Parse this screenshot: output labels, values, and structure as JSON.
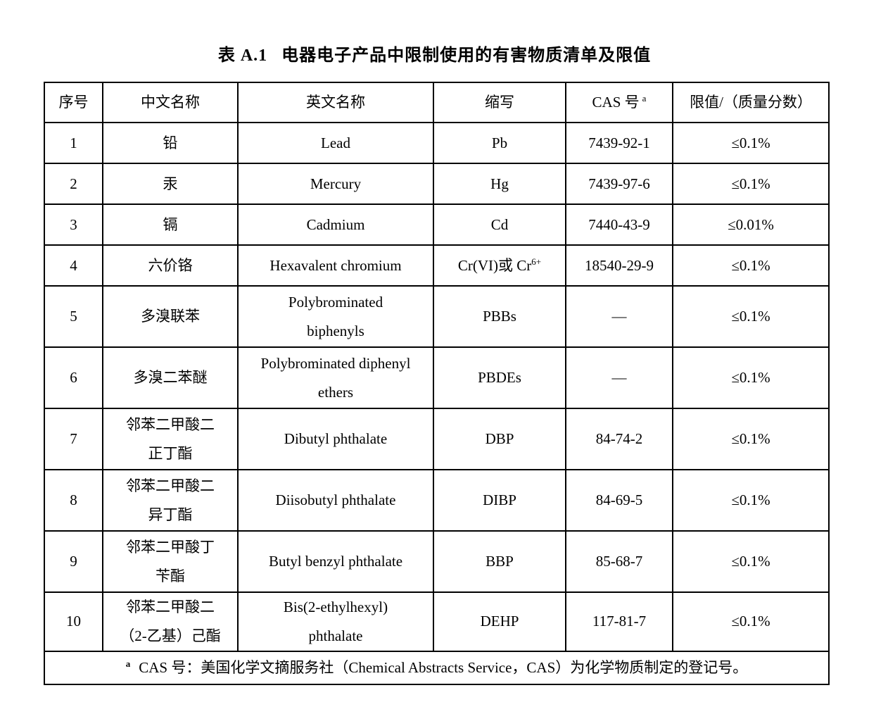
{
  "title": {
    "label": "表 A.1",
    "text": "电器电子产品中限制使用的有害物质清单及限值"
  },
  "table": {
    "header": {
      "no": "序号",
      "cn": "中文名称",
      "en": "英文名称",
      "abbr": "缩写",
      "cas": "CAS 号",
      "cas_sup": "a",
      "limit": "限值/（质量分数）"
    },
    "rows": [
      {
        "no": "1",
        "cn": "铅",
        "en": "Lead",
        "abbr": "Pb",
        "cas": "7439-92-1",
        "limit": "≤0.1%"
      },
      {
        "no": "2",
        "cn": "汞",
        "en": "Mercury",
        "abbr": "Hg",
        "cas": "7439-97-6",
        "limit": "≤0.1%"
      },
      {
        "no": "3",
        "cn": "镉",
        "en": "Cadmium",
        "abbr": "Cd",
        "cas": "7440-43-9",
        "limit": "≤0.01%"
      },
      {
        "no": "4",
        "cn": "六价铬",
        "en": "Hexavalent chromium",
        "abbr": "Cr(VI)或 Cr",
        "abbr_sup": "6+",
        "cas": "18540-29-9",
        "limit": "≤0.1%"
      },
      {
        "no": "5",
        "cn": "多溴联苯",
        "en": "Polybrominated\nbiphenyls",
        "abbr": "PBBs",
        "cas": "—",
        "limit": "≤0.1%"
      },
      {
        "no": "6",
        "cn": "多溴二苯醚",
        "en": "Polybrominated diphenyl\nethers",
        "abbr": "PBDEs",
        "cas": "—",
        "limit": "≤0.1%"
      },
      {
        "no": "7",
        "cn": "邻苯二甲酸二\n正丁酯",
        "en": "Dibutyl phthalate",
        "abbr": "DBP",
        "cas": "84-74-2",
        "limit": "≤0.1%"
      },
      {
        "no": "8",
        "cn": "邻苯二甲酸二\n异丁酯",
        "en": "Diisobutyl phthalate",
        "abbr": "DIBP",
        "cas": "84-69-5",
        "limit": "≤0.1%"
      },
      {
        "no": "9",
        "cn": "邻苯二甲酸丁\n苄酯",
        "en": "Butyl benzyl phthalate",
        "abbr": "BBP",
        "cas": "85-68-7",
        "limit": "≤0.1%"
      },
      {
        "no": "10",
        "cn": "邻苯二甲酸二\n（2-乙基）己酯",
        "en": "Bis(2-ethylhexyl)\nphthalate",
        "abbr": "DEHP",
        "cas": "117-81-7",
        "limit": "≤0.1%"
      }
    ]
  },
  "footnote": {
    "marker": "a",
    "text": "CAS 号：美国化学文摘服务社（Chemical Abstracts Service，CAS）为化学物质制定的登记号。"
  }
}
